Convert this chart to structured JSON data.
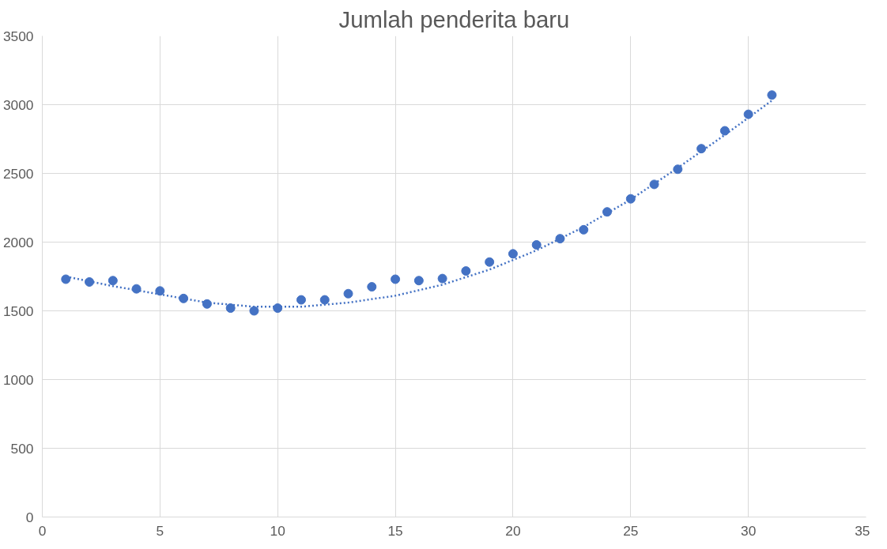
{
  "chart_data": {
    "type": "scatter",
    "title": "Jumlah penderita baru",
    "xlim": [
      0,
      35
    ],
    "xticks": [
      0,
      5,
      10,
      15,
      20,
      25,
      30,
      35
    ],
    "ylim": [
      0,
      3500
    ],
    "yticks": [
      0,
      500,
      1000,
      1500,
      2000,
      2500,
      3000,
      3500
    ],
    "grid": true,
    "marker": "circle",
    "series": [
      {
        "color": "#4472c4",
        "x": [
          1,
          2,
          3,
          4,
          5,
          6,
          7,
          8,
          9,
          10,
          11,
          12,
          13,
          14,
          15,
          16,
          17,
          18,
          19,
          20,
          21,
          22,
          23,
          24,
          25,
          26,
          27,
          28,
          29,
          30,
          31
        ],
        "values": [
          1730,
          1710,
          1720,
          1660,
          1645,
          1590,
          1550,
          1520,
          1500,
          1520,
          1580,
          1580,
          1625,
          1675,
          1730,
          1720,
          1735,
          1790,
          1855,
          1915,
          1980,
          2025,
          2090,
          2220,
          2315,
          2420,
          2530,
          2680,
          2810,
          2930,
          3070
        ]
      },
      {
        "type": "line",
        "color": "#4472c4",
        "line_style": "dotted",
        "marker": "none",
        "x": [
          1,
          3,
          5,
          7,
          9,
          11,
          13,
          15,
          17,
          19,
          21,
          23,
          25,
          27,
          29,
          31
        ],
        "values": [
          1750,
          1680,
          1620,
          1560,
          1530,
          1530,
          1560,
          1610,
          1690,
          1800,
          1940,
          2110,
          2310,
          2540,
          2780,
          3030
        ]
      }
    ]
  }
}
